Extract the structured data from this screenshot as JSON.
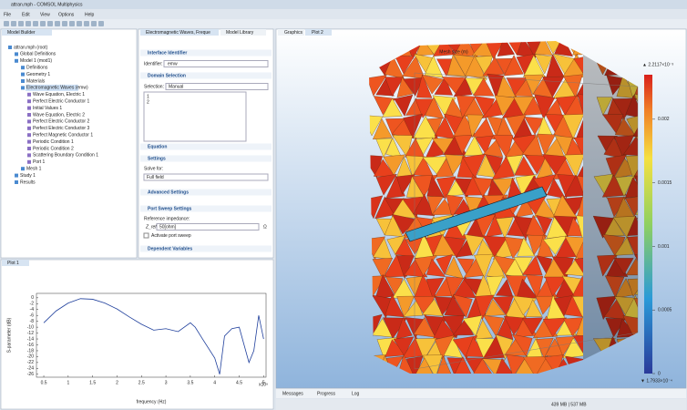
{
  "window": {
    "title": "attran.mph - COMSOL Multiphysics"
  },
  "menu": [
    "File",
    "Edit",
    "View",
    "Options",
    "Help"
  ],
  "model_builder": {
    "tab": "Model Builder",
    "tree": [
      {
        "label": "attran.mph (root)",
        "level": 0
      },
      {
        "label": "Global Definitions",
        "level": 1
      },
      {
        "label": "Model 1 (mod1)",
        "level": 1
      },
      {
        "label": "Definitions",
        "level": 2
      },
      {
        "label": "Geometry 1",
        "level": 2
      },
      {
        "label": "Materials",
        "level": 2
      },
      {
        "label": "Electromagnetic Waves (emw)",
        "level": 2
      },
      {
        "label": "Wave Equation, Electric 1",
        "level": 3
      },
      {
        "label": "Perfect Electric Conductor 1",
        "level": 3
      },
      {
        "label": "Initial Values 1",
        "level": 3
      },
      {
        "label": "Wave Equation, Electric 2",
        "level": 3
      },
      {
        "label": "Perfect Electric Conductor 2",
        "level": 3
      },
      {
        "label": "Perfect Electric Conductor 3",
        "level": 3
      },
      {
        "label": "Perfect Magnetic Conductor 1",
        "level": 3
      },
      {
        "label": "Periodic Condition 1",
        "level": 3
      },
      {
        "label": "Periodic Condition 2",
        "level": 3
      },
      {
        "label": "Scattering Boundary Condition 1",
        "level": 3
      },
      {
        "label": "Port 1",
        "level": 3
      },
      {
        "label": "Mesh 1",
        "level": 2
      },
      {
        "label": "Study 1",
        "level": 1
      },
      {
        "label": "Results",
        "level": 1
      }
    ]
  },
  "settings": {
    "tabs": [
      "Electromagnetic Waves, Freque",
      "Model Library"
    ],
    "interface_identifier": "Interface Identifier",
    "identifier_label": "Identifier:",
    "identifier": "emw",
    "domain_selection": "Domain Selection",
    "selection_label": "Selection:",
    "selection": "Manual",
    "domains": [
      "1",
      "2"
    ],
    "equation": "Equation",
    "settings": "Settings",
    "solve_for_label": "Solve for:",
    "solve_for": "Full field",
    "advanced": "Advanced Settings",
    "port_sweep": "Port Sweep Settings",
    "ref_impedance_label": "Reference impedance:",
    "zref": "Z_ref",
    "zref_value": "50[ohm]",
    "ohm": "Ω",
    "activate_sweep": "Activate port sweep",
    "dependent": "Dependent Variables"
  },
  "graphics": {
    "tabs": [
      "Graphics",
      "Plot 2"
    ],
    "title": "Mesh size (m)",
    "max_label": "▲ 2.2117×10⁻³",
    "min_label": "▼ 1.7933×10⁻⁴",
    "colorbar_lim": [
      0,
      0.00235
    ],
    "colorbar_ticks": [
      0,
      0.0005,
      0.001,
      0.0015,
      0.002
    ]
  },
  "plot1": {
    "tab": "Plot 1",
    "chart_data": {
      "type": "line",
      "ylabel": "S-parameter (dB)",
      "xlabel": "frequency (Hz)",
      "x_multiplier": "x10⁹",
      "x": [
        0.5,
        0.75,
        1,
        1.25,
        1.5,
        1.75,
        2,
        2.25,
        2.5,
        2.75,
        3,
        3.25,
        3.5,
        3.6,
        3.75,
        4,
        4.1,
        4.2,
        4.35,
        4.5,
        4.6,
        4.7,
        4.8,
        4.9,
        5.0
      ],
      "series": [
        {
          "color": "#1f3f9c",
          "values": [
            -8.5,
            -4.5,
            -1.8,
            -0.3,
            -0.5,
            -1.8,
            -3.8,
            -6.5,
            -9,
            -11,
            -10.5,
            -11.5,
            -8.5,
            -10,
            -14,
            -20.5,
            -26,
            -13,
            -10.5,
            -10,
            -16,
            -22,
            -18,
            -6,
            -14
          ]
        }
      ],
      "xlim": [
        0.35,
        5.05
      ],
      "ylim": [
        -27,
        1.5
      ],
      "xticks": [
        0.5,
        1,
        1.5,
        2,
        2.5,
        3,
        3.5,
        4,
        4.5,
        5
      ],
      "yticks": [
        0,
        -2,
        -4,
        -6,
        -8,
        -10,
        -12,
        -14,
        -16,
        -18,
        -20,
        -22,
        -24,
        -26
      ]
    }
  },
  "bottom_tabs": [
    "Messages",
    "Progress",
    "Log"
  ],
  "status": "439 MB | 537 MB"
}
